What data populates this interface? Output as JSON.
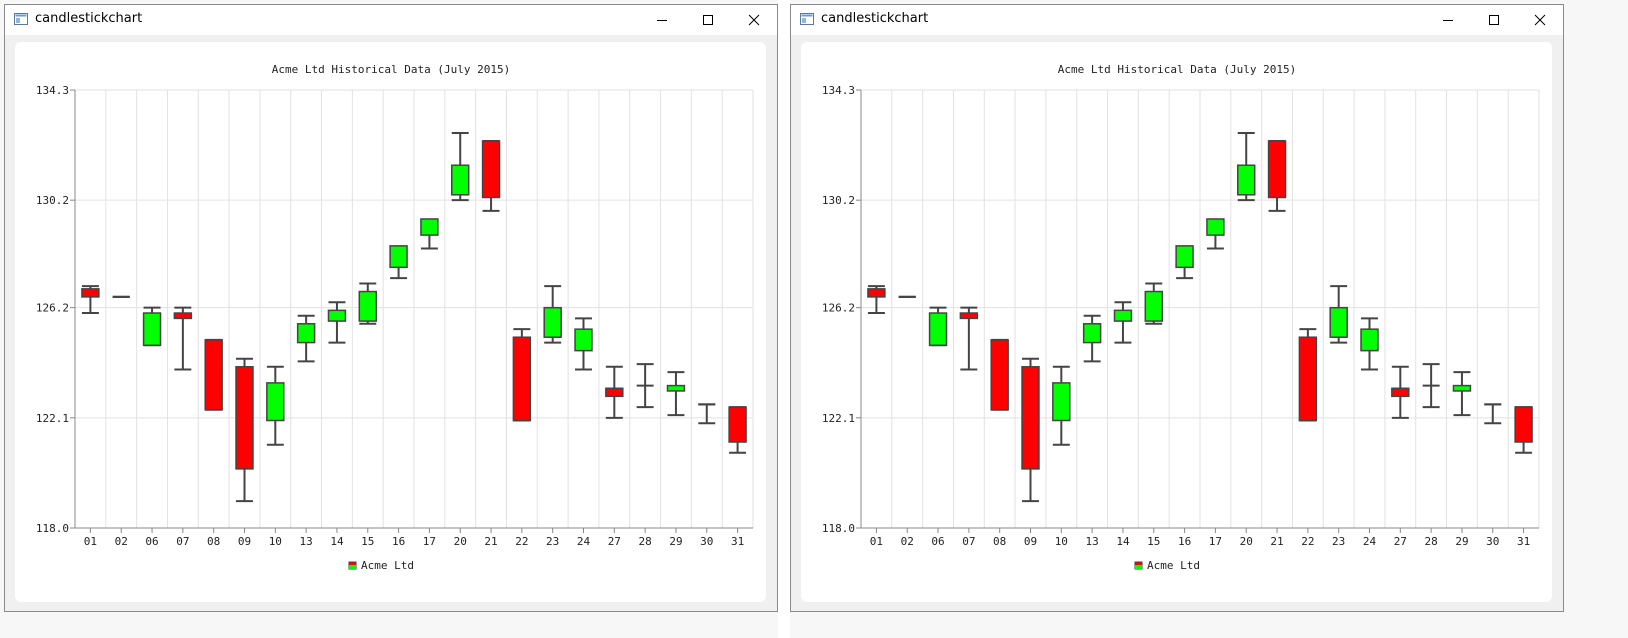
{
  "windows": [
    {
      "title": "candlestickchart"
    },
    {
      "title": "candlestickchart"
    }
  ],
  "controls": {
    "minimize_icon": "minimize-icon",
    "maximize_icon": "maximize-icon",
    "close_icon": "close-icon"
  },
  "colors": {
    "increasing": "#00ff00",
    "decreasing": "#ff0000",
    "outline": "#444444",
    "grid": "#e2e2e2"
  },
  "chart_data": {
    "type": "candlestick",
    "title": "Acme Ltd Historical Data (July 2015)",
    "xlabel": "",
    "ylabel": "",
    "ylim": [
      118.0,
      134.3
    ],
    "yticks": [
      "134.3",
      "130.2",
      "126.2",
      "122.1",
      "118.0"
    ],
    "ytick_values": [
      134.3,
      130.2,
      126.2,
      122.1,
      118.0
    ],
    "grid": true,
    "legend_position": "bottom",
    "series": [
      {
        "name": "Acme Ltd",
        "categories": [
          "01",
          "02",
          "06",
          "07",
          "08",
          "09",
          "10",
          "13",
          "14",
          "15",
          "16",
          "17",
          "20",
          "21",
          "22",
          "23",
          "24",
          "27",
          "28",
          "29",
          "30",
          "31"
        ],
        "open": [
          126.9,
          126.6,
          124.8,
          126.0,
          125.0,
          124.0,
          122.0,
          124.9,
          125.7,
          125.7,
          127.7,
          128.9,
          130.4,
          132.4,
          125.1,
          125.1,
          124.6,
          123.2,
          123.3,
          123.1,
          122.6,
          122.5
        ],
        "high": [
          127.0,
          126.6,
          126.2,
          126.2,
          125.0,
          124.3,
          124.0,
          125.9,
          126.4,
          127.1,
          128.4,
          129.4,
          132.7,
          132.4,
          125.4,
          127.0,
          125.8,
          124.0,
          124.1,
          123.8,
          122.6,
          122.5
        ],
        "low": [
          126.0,
          126.6,
          124.8,
          123.9,
          122.4,
          119.0,
          121.1,
          124.2,
          124.9,
          125.6,
          127.3,
          128.4,
          130.2,
          129.8,
          122.0,
          124.9,
          123.9,
          122.1,
          122.5,
          122.2,
          121.9,
          120.8
        ],
        "close": [
          126.6,
          126.6,
          126.0,
          125.8,
          122.4,
          120.2,
          123.4,
          125.6,
          126.1,
          126.8,
          128.5,
          129.5,
          131.5,
          130.3,
          122.0,
          126.2,
          125.4,
          122.9,
          123.3,
          123.3,
          122.6,
          121.2
        ]
      }
    ]
  }
}
